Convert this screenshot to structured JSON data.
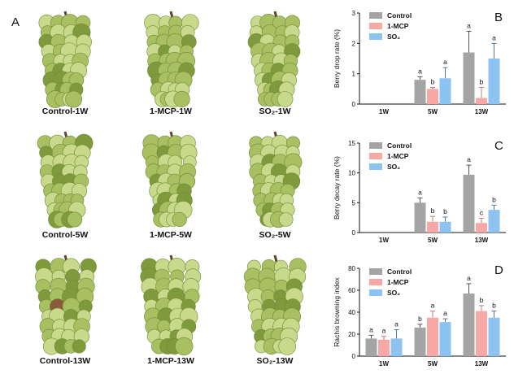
{
  "figure": {
    "panel_a_label": "A",
    "photo_captions": [
      [
        "Control-1W",
        "1-MCP-1W",
        "SO₂-1W"
      ],
      [
        "Control-5W",
        "1-MCP-5W",
        "SO₂-5W"
      ],
      [
        "Control-13W",
        "1-MCP-13W",
        "SO₂-13W"
      ]
    ],
    "colors": {
      "Control": "#a4a4a4",
      "1-MCP": "#f7a7a5",
      "SO2": "#8dc3f1",
      "grape_light": "#c8d98b",
      "grape_mid": "#a8bf62",
      "grape_dark": "#7f9a3c",
      "stem": "#5b4a2e"
    }
  },
  "chart_data": [
    {
      "panel": "B",
      "type": "bar",
      "ylabel": "Berry drop rate (%)",
      "ylim": [
        0,
        3
      ],
      "yticks": [
        "0",
        "1",
        "2",
        "3"
      ],
      "categories": [
        "1W",
        "5W",
        "13W"
      ],
      "series": [
        {
          "name": "Control",
          "values": [
            0,
            0.8,
            1.7
          ],
          "errors": [
            0,
            0.1,
            0.7
          ],
          "letters": [
            "",
            "a",
            "a"
          ]
        },
        {
          "name": "1-MCP",
          "values": [
            0,
            0.5,
            0.2
          ],
          "errors": [
            0,
            0.05,
            0.35
          ],
          "letters": [
            "",
            "b",
            "b"
          ]
        },
        {
          "name": "SO2",
          "values": [
            0,
            0.85,
            1.5
          ],
          "errors": [
            0,
            0.35,
            0.5
          ],
          "letters": [
            "",
            "a",
            "a"
          ]
        }
      ],
      "legend": [
        "Control",
        "1-MCP",
        "SO₂"
      ]
    },
    {
      "panel": "C",
      "type": "bar",
      "ylabel": "Berry decay rate (%)",
      "ylim": [
        0,
        15
      ],
      "yticks": [
        "0",
        "5",
        "10",
        "15"
      ],
      "categories": [
        "1W",
        "5W",
        "13W"
      ],
      "series": [
        {
          "name": "Control",
          "values": [
            0,
            5.0,
            9.7
          ],
          "errors": [
            0,
            0.8,
            1.6
          ],
          "letters": [
            "",
            "a",
            "a"
          ]
        },
        {
          "name": "1-MCP",
          "values": [
            0,
            1.8,
            1.6
          ],
          "errors": [
            0,
            0.9,
            0.8
          ],
          "letters": [
            "",
            "b",
            "c"
          ]
        },
        {
          "name": "SO2",
          "values": [
            0,
            1.8,
            3.8
          ],
          "errors": [
            0,
            0.8,
            0.8
          ],
          "letters": [
            "",
            "b",
            "b"
          ]
        }
      ],
      "legend": [
        "Control",
        "1-MCP",
        "SO₂"
      ]
    },
    {
      "panel": "D",
      "type": "bar",
      "ylabel": "Rachis browning index",
      "ylim": [
        0,
        80
      ],
      "yticks": [
        "0",
        "20",
        "40",
        "60",
        "80"
      ],
      "categories": [
        "1W",
        "5W",
        "13W"
      ],
      "series": [
        {
          "name": "Control",
          "values": [
            16,
            26,
            57
          ],
          "errors": [
            3,
            3,
            9
          ],
          "letters": [
            "a",
            "b",
            "a"
          ]
        },
        {
          "name": "1-MCP",
          "values": [
            15,
            35,
            41
          ],
          "errors": [
            3,
            6,
            5
          ],
          "letters": [
            "a",
            "a",
            "b"
          ]
        },
        {
          "name": "SO2",
          "values": [
            16,
            31,
            35
          ],
          "errors": [
            8,
            3,
            6
          ],
          "letters": [
            "a",
            "a",
            "b"
          ]
        }
      ],
      "legend": [
        "Control",
        "1-MCP",
        "SO₂"
      ]
    }
  ]
}
